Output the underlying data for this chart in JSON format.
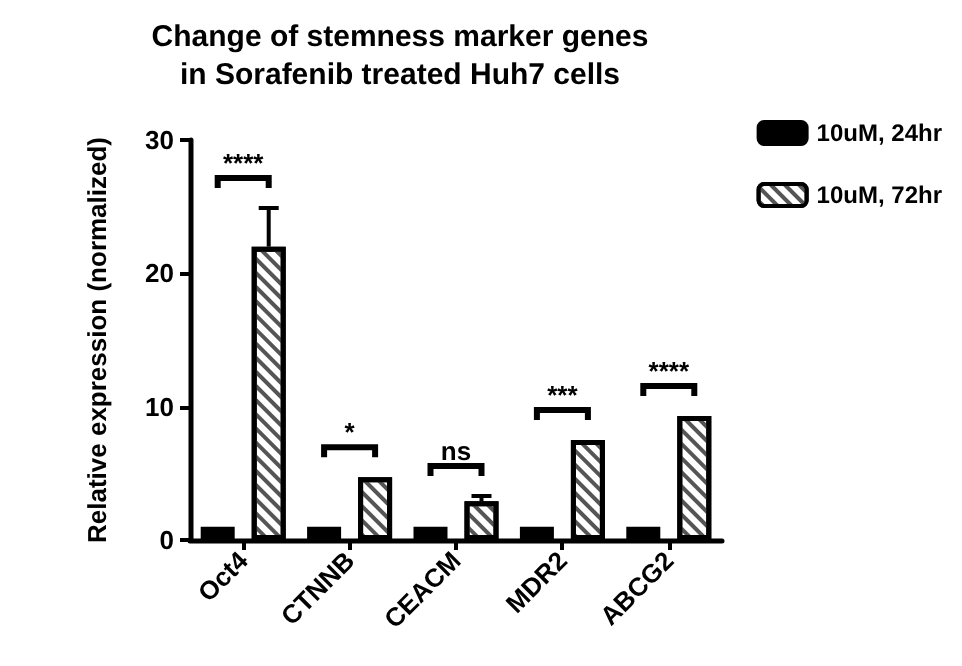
{
  "chart_data": {
    "type": "bar",
    "title": "Change of stemness marker genes\nin Sorafenib treated Huh7 cells",
    "ylabel": "Relative expression (normalized)",
    "categories": [
      "Oct4",
      "CTNNB",
      "CEACM",
      "MDR2",
      "ABCG2"
    ],
    "series": [
      {
        "name": "10uM, 24hr",
        "color": "#000000",
        "values": [
          1,
          1,
          1,
          1,
          1
        ]
      },
      {
        "name": "10uM, 72hr",
        "color": "#ffffff",
        "values": [
          22,
          4.7,
          2.9,
          7.5,
          9.3
        ],
        "errors": [
          [
            22,
            24.9
          ],
          null,
          [
            2.9,
            3.3
          ],
          null,
          null
        ]
      }
    ],
    "ylim": [
      0,
      30
    ],
    "yticks": [
      0,
      10,
      20,
      30
    ],
    "grid": false,
    "legend": "top right",
    "annotations": [
      "****",
      "*",
      "ns",
      "***",
      "****"
    ]
  }
}
